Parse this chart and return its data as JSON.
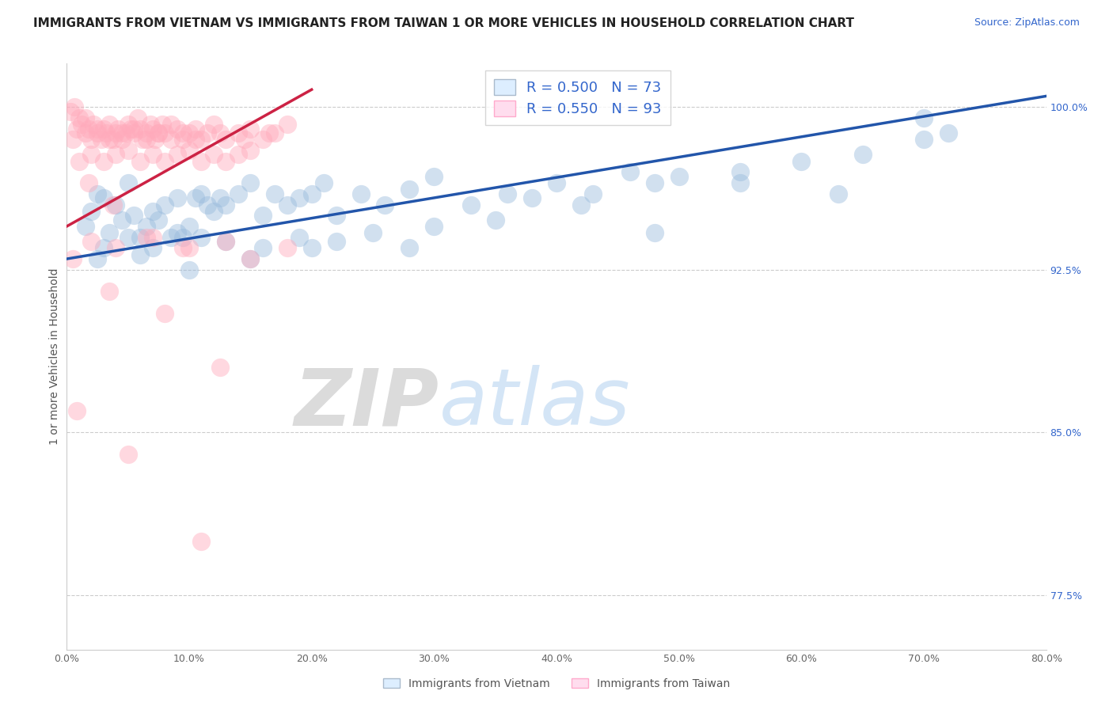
{
  "title": "IMMIGRANTS FROM VIETNAM VS IMMIGRANTS FROM TAIWAN 1 OR MORE VEHICLES IN HOUSEHOLD CORRELATION CHART",
  "source": "Source: ZipAtlas.com",
  "ylabel": "1 or more Vehicles in Household",
  "xlim": [
    0.0,
    80.0
  ],
  "ylim": [
    75.0,
    102.0
  ],
  "yticks": [
    77.5,
    85.0,
    92.5,
    100.0
  ],
  "xticks": [
    0.0,
    10.0,
    20.0,
    30.0,
    40.0,
    50.0,
    60.0,
    70.0,
    80.0
  ],
  "vietnam_R": 0.5,
  "vietnam_N": 73,
  "taiwan_R": 0.55,
  "taiwan_N": 93,
  "blue_scatter_color": "#99BBDD",
  "pink_scatter_color": "#FFAABB",
  "blue_line_color": "#2255AA",
  "pink_line_color": "#CC2244",
  "watermark_zip_color": "#CCCCCC",
  "watermark_atlas_color": "#AACCEE",
  "background_color": "#FFFFFF",
  "title_fontsize": 11,
  "source_fontsize": 9,
  "legend_fontsize": 13,
  "axis_tick_fontsize": 9,
  "axis_label_fontsize": 10,
  "vietnam_line_x0": 0.0,
  "vietnam_line_y0": 93.0,
  "vietnam_line_x1": 80.0,
  "vietnam_line_y1": 100.5,
  "taiwan_line_x0": 0.0,
  "taiwan_line_y0": 94.5,
  "taiwan_line_x1": 20.0,
  "taiwan_line_y1": 100.8,
  "vietnam_x": [
    1.5,
    2.0,
    2.5,
    3.0,
    3.5,
    4.0,
    4.5,
    5.0,
    5.5,
    6.0,
    6.5,
    7.0,
    7.5,
    8.0,
    8.5,
    9.0,
    9.5,
    10.0,
    10.5,
    11.0,
    11.5,
    12.0,
    12.5,
    13.0,
    14.0,
    15.0,
    16.0,
    17.0,
    18.0,
    19.0,
    20.0,
    21.0,
    22.0,
    24.0,
    26.0,
    28.0,
    30.0,
    33.0,
    36.0,
    38.0,
    40.0,
    43.0,
    46.0,
    48.0,
    50.0,
    55.0,
    60.0,
    65.0,
    70.0,
    72.0,
    3.0,
    5.0,
    7.0,
    9.0,
    11.0,
    13.0,
    16.0,
    19.0,
    22.0,
    25.0,
    28.0,
    35.0,
    42.0,
    48.0,
    55.0,
    63.0,
    70.0,
    2.5,
    6.0,
    10.0,
    15.0,
    20.0,
    30.0
  ],
  "vietnam_y": [
    94.5,
    95.2,
    96.0,
    95.8,
    94.2,
    95.5,
    94.8,
    96.5,
    95.0,
    94.0,
    94.5,
    95.2,
    94.8,
    95.5,
    94.0,
    95.8,
    94.0,
    94.5,
    95.8,
    96.0,
    95.5,
    95.2,
    95.8,
    95.5,
    96.0,
    96.5,
    95.0,
    96.0,
    95.5,
    95.8,
    96.0,
    96.5,
    95.0,
    96.0,
    95.5,
    96.2,
    96.8,
    95.5,
    96.0,
    95.8,
    96.5,
    96.0,
    97.0,
    96.5,
    96.8,
    97.0,
    97.5,
    97.8,
    98.5,
    98.8,
    93.5,
    94.0,
    93.5,
    94.2,
    94.0,
    93.8,
    93.5,
    94.0,
    93.8,
    94.2,
    93.5,
    94.8,
    95.5,
    94.2,
    96.5,
    96.0,
    99.5,
    93.0,
    93.2,
    92.5,
    93.0,
    93.5,
    94.5
  ],
  "taiwan_x": [
    0.5,
    0.8,
    1.0,
    1.2,
    1.5,
    1.8,
    2.0,
    2.2,
    2.5,
    2.8,
    3.0,
    3.2,
    3.5,
    3.8,
    4.0,
    4.2,
    4.5,
    4.8,
    5.0,
    5.2,
    5.5,
    5.8,
    6.0,
    6.2,
    6.5,
    6.8,
    7.0,
    7.2,
    7.5,
    7.8,
    8.0,
    8.5,
    9.0,
    9.5,
    10.0,
    10.5,
    11.0,
    11.5,
    12.0,
    13.0,
    14.0,
    15.0,
    16.0,
    17.0,
    18.0,
    1.0,
    2.0,
    3.0,
    4.0,
    5.0,
    6.0,
    7.0,
    8.0,
    9.0,
    10.0,
    11.0,
    12.0,
    13.0,
    14.0,
    15.0,
    0.3,
    0.6,
    1.5,
    2.5,
    3.5,
    4.5,
    5.5,
    6.5,
    7.5,
    8.5,
    9.5,
    10.5,
    12.5,
    14.5,
    16.5,
    1.8,
    3.8,
    6.5,
    9.5,
    0.5,
    2.0,
    4.0,
    7.0,
    10.0,
    13.0,
    15.0,
    18.0,
    3.5,
    8.0,
    12.5,
    0.8,
    5.0,
    11.0
  ],
  "taiwan_y": [
    98.5,
    99.0,
    99.5,
    99.2,
    98.8,
    99.0,
    98.5,
    99.2,
    98.8,
    98.5,
    99.0,
    98.8,
    99.2,
    98.5,
    98.8,
    99.0,
    98.5,
    98.8,
    99.2,
    99.0,
    98.8,
    99.5,
    99.0,
    98.5,
    98.8,
    99.2,
    99.0,
    98.5,
    98.8,
    99.2,
    98.8,
    98.5,
    99.0,
    98.5,
    98.8,
    99.0,
    98.5,
    98.8,
    99.2,
    98.5,
    98.8,
    99.0,
    98.5,
    98.8,
    99.2,
    97.5,
    97.8,
    97.5,
    97.8,
    98.0,
    97.5,
    97.8,
    97.5,
    97.8,
    98.0,
    97.5,
    97.8,
    97.5,
    97.8,
    98.0,
    99.8,
    100.0,
    99.5,
    99.0,
    98.5,
    98.8,
    99.0,
    98.5,
    98.8,
    99.2,
    98.8,
    98.5,
    98.8,
    98.5,
    98.8,
    96.5,
    95.5,
    94.0,
    93.5,
    93.0,
    93.8,
    93.5,
    94.0,
    93.5,
    93.8,
    93.0,
    93.5,
    91.5,
    90.5,
    88.0,
    86.0,
    84.0,
    80.0
  ]
}
